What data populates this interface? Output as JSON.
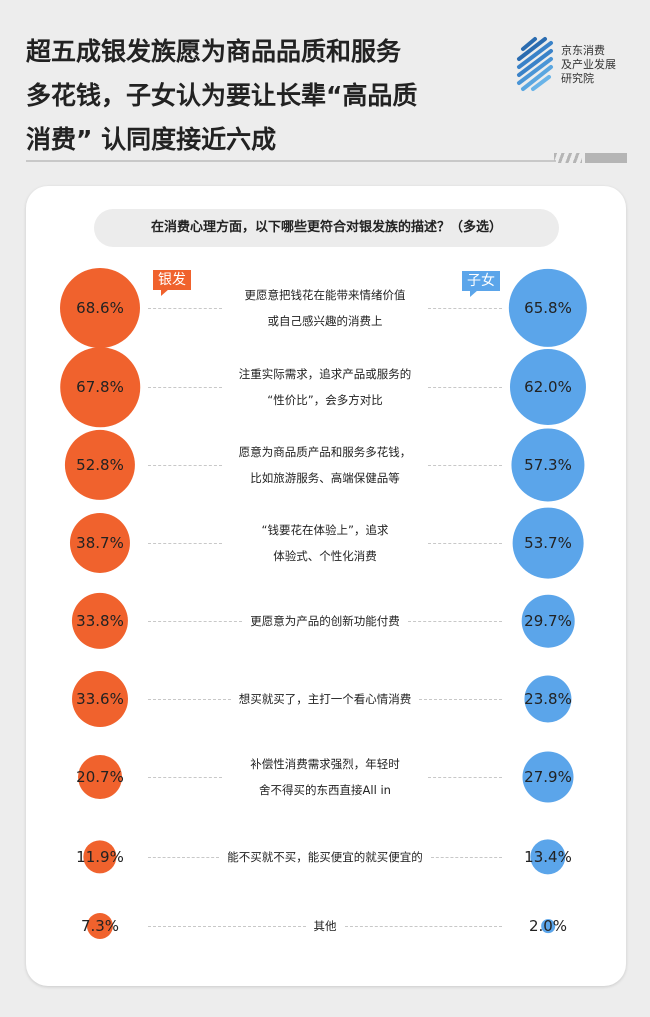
{
  "header": {
    "title": "超五成银发族愿为商品品质和服务\n多花钱，子女认为要让长辈“高品质\n消费” 认同度接近六成",
    "logo_text": "京东消费\n及产业发展\n研究院"
  },
  "chart_data": {
    "type": "bubble-comparison",
    "title": "在消费心理方面，以下哪些更符合对银发族的描述？（多选）",
    "series": [
      {
        "name": "银发",
        "color": "#f0622d",
        "values": [
          68.6,
          67.8,
          52.8,
          38.7,
          33.8,
          33.6,
          20.7,
          11.9,
          7.3
        ]
      },
      {
        "name": "子女",
        "color": "#5ba5ea",
        "values": [
          65.8,
          62.0,
          57.3,
          53.7,
          29.7,
          23.8,
          27.9,
          13.4,
          2.0
        ]
      }
    ],
    "categories": [
      "更愿意把钱花在能带来情绪价值\n或自己感兴趣的消费上",
      "注重实际需求，追求产品或服务的\n“性价比”，会多方对比",
      "愿意为商品质产品和服务多花钱，\n比如旅游服务、高端保健品等",
      "“钱要花在体验上”，追求\n体验式、个性化消费",
      "更愿意为产品的创新功能付费",
      "想买就买了，主打一个看心情消费",
      "补偿性消费需求强烈，年轻时\n舍不得买的东西直接All in",
      "能不买就不买，能买便宜的就买便宜的",
      "其他"
    ],
    "value_labels_left": [
      "68.6%",
      "67.8%",
      "52.8%",
      "38.7%",
      "33.8%",
      "33.6%",
      "20.7%",
      "11.9%",
      "7.3%"
    ],
    "value_labels_right": [
      "65.8%",
      "62.0%",
      "57.3%",
      "53.7%",
      "29.7%",
      "23.8%",
      "27.9%",
      "13.4%",
      "2.0%"
    ],
    "unit": "%"
  }
}
